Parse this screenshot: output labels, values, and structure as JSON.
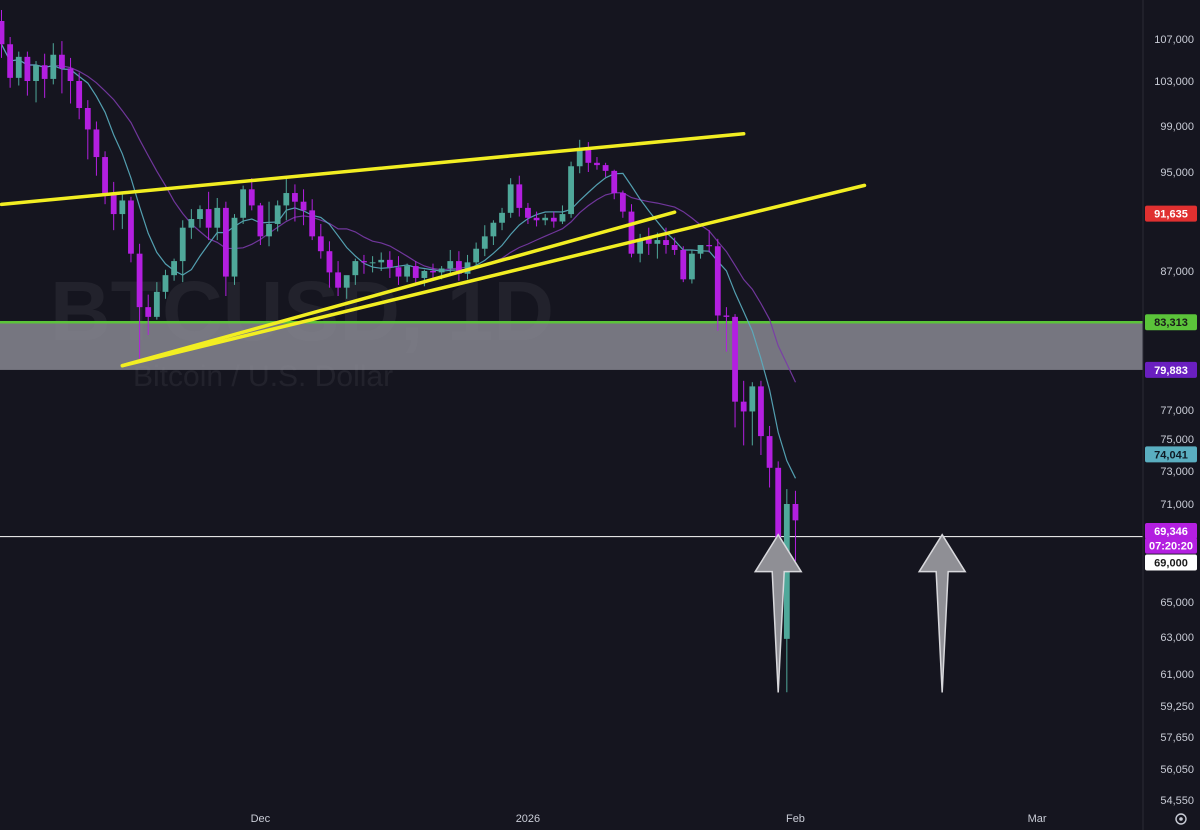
{
  "chart_data": {
    "type": "candlestick",
    "symbol": "BTCUSD, 1D",
    "description": "Bitcoin / U.S. Dollar",
    "colors": {
      "up": "#4fa89a",
      "down": "#b31fe0",
      "background": "#15151f",
      "trendline": "#f2ee22",
      "support": "#5bc43a",
      "zone": "#8f8f98",
      "ma_fast": "#5aaec0",
      "ma_slow": "#7a3aa8",
      "arrow": "#8f8f95"
    },
    "y_ticks": [
      {
        "label": "107,000",
        "value": 107000
      },
      {
        "label": "103,000",
        "value": 103000
      },
      {
        "label": "99,000",
        "value": 99000
      },
      {
        "label": "95,000",
        "value": 95000
      },
      {
        "label": "87,000",
        "value": 87000
      },
      {
        "label": "77,000",
        "value": 77000
      },
      {
        "label": "75,000",
        "value": 75000
      },
      {
        "label": "73,000",
        "value": 73000
      },
      {
        "label": "71,000",
        "value": 71000
      },
      {
        "label": "65,000",
        "value": 65000
      },
      {
        "label": "63,000",
        "value": 63000
      },
      {
        "label": "61,000",
        "value": 61000
      },
      {
        "label": "59,250",
        "value": 59250
      },
      {
        "label": "57,650",
        "value": 57650
      },
      {
        "label": "56,050",
        "value": 56050
      },
      {
        "label": "54,550",
        "value": 54550
      }
    ],
    "x_ticks": [
      {
        "label": "Dec",
        "index": 30
      },
      {
        "label": "2026",
        "index": 61
      },
      {
        "label": "Feb",
        "index": 92
      },
      {
        "label": "Mar",
        "index": 120
      }
    ],
    "price_tags": [
      {
        "label": "91,635",
        "value": 91635,
        "bg": "#e03030",
        "fg": "#ffffff"
      },
      {
        "label": "83,313",
        "value": 83313,
        "bg": "#5bc43a",
        "fg": "#1a1a1a"
      },
      {
        "label": "79,883",
        "value": 79883,
        "bg": "#6a1fc0",
        "fg": "#ffffff"
      },
      {
        "label": "74,041",
        "value": 74041,
        "bg": "#5aaec0",
        "fg": "#0f1a24"
      },
      {
        "label": "69,346",
        "value": 69346,
        "bg": "#b31fe0",
        "fg": "#ffffff"
      },
      {
        "label": "07:20:20",
        "value": 68450,
        "bg": "#b31fe0",
        "fg": "#ffffff"
      },
      {
        "label": "69,000",
        "value": 67420,
        "bg": "#ffffff",
        "fg": "#1a1a1a"
      }
    ],
    "horizontal_line": 69000,
    "zone": {
      "top": 83313,
      "bottom": 79883
    },
    "trendlines": [
      {
        "from": {
          "index": 0,
          "price": 92380
        },
        "to": {
          "index": 86,
          "price": 98330
        }
      },
      {
        "from": {
          "index": 14,
          "price": 80190
        },
        "to": {
          "index": 100,
          "price": 93920
        }
      },
      {
        "from": {
          "index": 14,
          "price": 80190
        },
        "to": {
          "index": 78,
          "price": 91750
        }
      }
    ],
    "arrows": [
      {
        "index": 90
      },
      {
        "index": 109
      }
    ],
    "candles": [
      {
        "o": 108800,
        "h": 109900,
        "c": 106500,
        "l": 105200
      },
      {
        "o": 106500,
        "h": 107200,
        "c": 103300,
        "l": 102400
      },
      {
        "o": 103300,
        "h": 105800,
        "c": 105300,
        "l": 102600
      },
      {
        "o": 105300,
        "h": 105800,
        "c": 103000,
        "l": 101700
      },
      {
        "o": 103000,
        "h": 104900,
        "c": 104500,
        "l": 101100
      },
      {
        "o": 104500,
        "h": 105600,
        "c": 103200,
        "l": 101500
      },
      {
        "o": 103200,
        "h": 106600,
        "c": 105500,
        "l": 102700
      },
      {
        "o": 105500,
        "h": 106800,
        "c": 104200,
        "l": 101900
      },
      {
        "o": 104200,
        "h": 105200,
        "c": 103000,
        "l": 101000
      },
      {
        "o": 103000,
        "h": 103800,
        "c": 100600,
        "l": 99600
      },
      {
        "o": 100600,
        "h": 101300,
        "c": 98700,
        "l": 96100
      },
      {
        "o": 98700,
        "h": 99400,
        "c": 96300,
        "l": 94700
      },
      {
        "o": 96300,
        "h": 96800,
        "c": 93200,
        "l": 92400
      },
      {
        "o": 93200,
        "h": 94200,
        "c": 91600,
        "l": 90300
      },
      {
        "o": 91600,
        "h": 93300,
        "c": 92700,
        "l": 90400
      },
      {
        "o": 92700,
        "h": 93000,
        "c": 88400,
        "l": 87700
      },
      {
        "o": 88400,
        "h": 89200,
        "c": 84400,
        "l": 80700
      },
      {
        "o": 84400,
        "h": 85300,
        "c": 83700,
        "l": 82400
      },
      {
        "o": 83700,
        "h": 86200,
        "c": 85500,
        "l": 83500
      },
      {
        "o": 85500,
        "h": 87100,
        "c": 86700,
        "l": 85000
      },
      {
        "o": 86700,
        "h": 88000,
        "c": 87800,
        "l": 86300
      },
      {
        "o": 87800,
        "h": 91100,
        "c": 90500,
        "l": 86200
      },
      {
        "o": 90500,
        "h": 92000,
        "c": 91200,
        "l": 89600
      },
      {
        "o": 91200,
        "h": 92300,
        "c": 92000,
        "l": 90500
      },
      {
        "o": 92000,
        "h": 93400,
        "c": 90500,
        "l": 89500
      },
      {
        "o": 90500,
        "h": 92900,
        "c": 92100,
        "l": 89500
      },
      {
        "o": 92100,
        "h": 92600,
        "c": 86600,
        "l": 85200
      },
      {
        "o": 86600,
        "h": 91600,
        "c": 91300,
        "l": 86000
      },
      {
        "o": 91300,
        "h": 93900,
        "c": 93600,
        "l": 90800
      },
      {
        "o": 93600,
        "h": 94500,
        "c": 92300,
        "l": 91900
      },
      {
        "o": 92300,
        "h": 92500,
        "c": 89800,
        "l": 89100
      },
      {
        "o": 89800,
        "h": 92600,
        "c": 90800,
        "l": 89000
      },
      {
        "o": 90800,
        "h": 92700,
        "c": 92300,
        "l": 90200
      },
      {
        "o": 92300,
        "h": 94500,
        "c": 93300,
        "l": 91100
      },
      {
        "o": 93300,
        "h": 94000,
        "c": 92600,
        "l": 91000
      },
      {
        "o": 92600,
        "h": 93600,
        "c": 91900,
        "l": 90700
      },
      {
        "o": 91900,
        "h": 92800,
        "c": 89800,
        "l": 89500
      },
      {
        "o": 89800,
        "h": 90800,
        "c": 88600,
        "l": 88000
      },
      {
        "o": 88600,
        "h": 89400,
        "c": 86900,
        "l": 85800
      },
      {
        "o": 86900,
        "h": 87800,
        "c": 85800,
        "l": 85200
      },
      {
        "o": 85800,
        "h": 86400,
        "c": 86700,
        "l": 85000
      },
      {
        "o": 86700,
        "h": 88000,
        "c": 87800,
        "l": 86000
      },
      {
        "o": 87800,
        "h": 88300,
        "c": 87700,
        "l": 86800
      },
      {
        "o": 87700,
        "h": 88200,
        "c": 87700,
        "l": 86900
      },
      {
        "o": 87700,
        "h": 88500,
        "c": 87900,
        "l": 87000
      },
      {
        "o": 87900,
        "h": 88600,
        "c": 87300,
        "l": 86500
      },
      {
        "o": 87300,
        "h": 88200,
        "c": 86600,
        "l": 86000
      },
      {
        "o": 86600,
        "h": 87600,
        "c": 87400,
        "l": 86200
      },
      {
        "o": 87400,
        "h": 87800,
        "c": 86500,
        "l": 86000
      },
      {
        "o": 86500,
        "h": 87100,
        "c": 87000,
        "l": 85900
      },
      {
        "o": 87000,
        "h": 87600,
        "c": 86900,
        "l": 86500
      },
      {
        "o": 86900,
        "h": 87400,
        "c": 87200,
        "l": 86400
      },
      {
        "o": 87200,
        "h": 88700,
        "c": 87800,
        "l": 86700
      },
      {
        "o": 87800,
        "h": 88600,
        "c": 86800,
        "l": 86300
      },
      {
        "o": 86800,
        "h": 88300,
        "c": 87700,
        "l": 86400
      },
      {
        "o": 87700,
        "h": 89300,
        "c": 88800,
        "l": 87400
      },
      {
        "o": 88800,
        "h": 90700,
        "c": 89800,
        "l": 88200
      },
      {
        "o": 89800,
        "h": 91100,
        "c": 90900,
        "l": 89100
      },
      {
        "o": 90900,
        "h": 92100,
        "c": 91700,
        "l": 90300
      },
      {
        "o": 91700,
        "h": 94500,
        "c": 94000,
        "l": 91300
      },
      {
        "o": 94000,
        "h": 94700,
        "c": 92100,
        "l": 91400
      },
      {
        "o": 92100,
        "h": 92500,
        "c": 91300,
        "l": 90800
      },
      {
        "o": 91300,
        "h": 91800,
        "c": 91100,
        "l": 90600
      },
      {
        "o": 91100,
        "h": 91600,
        "c": 91300,
        "l": 90700
      },
      {
        "o": 91300,
        "h": 91800,
        "c": 91000,
        "l": 90500
      },
      {
        "o": 91000,
        "h": 92300,
        "c": 91600,
        "l": 90800
      },
      {
        "o": 91600,
        "h": 95900,
        "c": 95500,
        "l": 91300
      },
      {
        "o": 95500,
        "h": 97800,
        "c": 97100,
        "l": 94900
      },
      {
        "o": 97100,
        "h": 97600,
        "c": 95800,
        "l": 95000
      },
      {
        "o": 95800,
        "h": 96300,
        "c": 95600,
        "l": 95200
      },
      {
        "o": 95600,
        "h": 95800,
        "c": 95100,
        "l": 94600
      },
      {
        "o": 95100,
        "h": 95200,
        "c": 93300,
        "l": 92800
      },
      {
        "o": 93300,
        "h": 93500,
        "c": 91800,
        "l": 91300
      },
      {
        "o": 91800,
        "h": 92400,
        "c": 88400,
        "l": 88100
      },
      {
        "o": 88400,
        "h": 90000,
        "c": 89600,
        "l": 87700
      },
      {
        "o": 89600,
        "h": 90500,
        "c": 89200,
        "l": 88300
      },
      {
        "o": 89200,
        "h": 90100,
        "c": 89500,
        "l": 88000
      },
      {
        "o": 89500,
        "h": 90500,
        "c": 89100,
        "l": 88400
      },
      {
        "o": 89100,
        "h": 89700,
        "c": 88700,
        "l": 88300
      },
      {
        "o": 88700,
        "h": 89000,
        "c": 86400,
        "l": 86200
      },
      {
        "o": 86400,
        "h": 88700,
        "c": 88400,
        "l": 86100
      },
      {
        "o": 88400,
        "h": 89100,
        "c": 89100,
        "l": 88000
      },
      {
        "o": 89100,
        "h": 90300,
        "c": 89000,
        "l": 88500
      },
      {
        "o": 89000,
        "h": 89600,
        "c": 83800,
        "l": 82700
      },
      {
        "o": 83800,
        "h": 84400,
        "c": 83700,
        "l": 81200
      },
      {
        "o": 83700,
        "h": 83900,
        "c": 77600,
        "l": 75800
      },
      {
        "o": 77600,
        "h": 79100,
        "c": 76900,
        "l": 74600
      },
      {
        "o": 76900,
        "h": 79000,
        "c": 78700,
        "l": 74600
      },
      {
        "o": 78700,
        "h": 79100,
        "c": 75200,
        "l": 74000
      },
      {
        "o": 75200,
        "h": 75900,
        "c": 73200,
        "l": 72000
      },
      {
        "o": 73200,
        "h": 73600,
        "c": 62900,
        "l": 60600
      },
      {
        "o": 62900,
        "h": 71900,
        "c": 71000,
        "l": 60000
      },
      {
        "o": 71000,
        "h": 71800,
        "c": 70000,
        "l": 67500
      }
    ]
  }
}
